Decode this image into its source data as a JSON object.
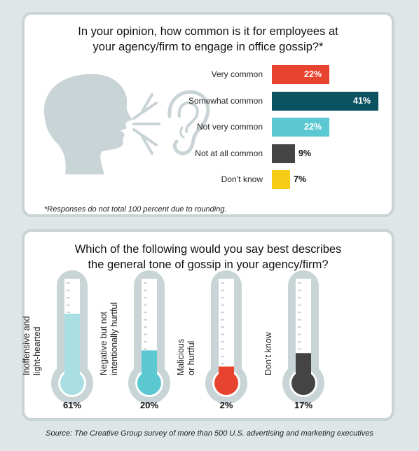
{
  "question1": {
    "line1": "In your opinion, how common is it for employees at",
    "line2": "your agency/firm to engage in office gossip?*"
  },
  "footnote": "*Responses do not total 100 percent due to rounding.",
  "question2": {
    "line1": "Which of the following would you say best describes",
    "line2": "the general tone of gossip in your agency/firm?"
  },
  "source": "Source: The Creative Group survey of more than 500 U.S. advertising and marketing executives",
  "icons": [
    "speaking-head-icon",
    "sound-wave-icon",
    "ear-icon",
    "thermometer-icon"
  ],
  "colors": {
    "red": "#e8432f",
    "dark_teal": "#0c5362",
    "light_teal": "#5bc8d2",
    "dark_gray": "#444444",
    "yellow": "#f7cc16",
    "panel_border": "#c9d4d6",
    "background": "#dfe6e7"
  },
  "chart_data": [
    {
      "type": "bar",
      "orientation": "horizontal",
      "categories": [
        "Very common",
        "Somewhat common",
        "Not very common",
        "Not at all common",
        "Don’t know"
      ],
      "values": [
        22,
        41,
        22,
        9,
        7
      ],
      "labels": [
        "22%",
        "41%",
        "22%",
        "9%",
        "7%"
      ],
      "colors": [
        "#e8432f",
        "#0c5362",
        "#5bc8d2",
        "#444444",
        "#f7cc16"
      ],
      "xlim": [
        0,
        41
      ]
    },
    {
      "type": "bar",
      "style": "thermometer",
      "categories": [
        [
          "Inoffensive and",
          "light-hearted"
        ],
        [
          "Negative but not",
          "intentionally hurtful"
        ],
        [
          "Malicious",
          "or hurtful"
        ],
        [
          "Don’t know"
        ]
      ],
      "values": [
        61,
        20,
        2,
        17
      ],
      "labels": [
        "61%",
        "20%",
        "2%",
        "17%"
      ],
      "colors": [
        "#a9dee3",
        "#5bc8d2",
        "#e8432f",
        "#444444"
      ],
      "ylim": [
        0,
        100
      ]
    }
  ]
}
